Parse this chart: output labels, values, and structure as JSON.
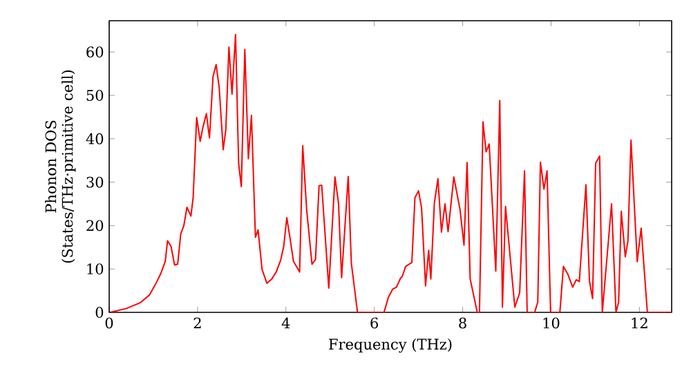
{
  "chart_data": {
    "type": "line",
    "xlabel": "Frequency (THz)",
    "ylabel": "Phonon DOS (States/THz·primitive cell)",
    "series": [
      {
        "color": "#ff0000",
        "x": [
          0.02,
          0.39,
          0.7,
          0.91,
          1.06,
          1.17,
          1.27,
          1.32,
          1.4,
          1.48,
          1.55,
          1.62,
          1.69,
          1.76,
          1.85,
          1.9,
          1.98,
          2.06,
          2.12,
          2.2,
          2.27,
          2.35,
          2.42,
          2.49,
          2.58,
          2.64,
          2.71,
          2.78,
          2.86,
          2.93,
          2.99,
          3.07,
          3.15,
          3.22,
          3.31,
          3.37,
          3.46,
          3.57,
          3.68,
          3.78,
          3.88,
          3.95,
          4.02,
          4.09,
          4.17,
          4.31,
          4.38,
          4.47,
          4.59,
          4.67,
          4.75,
          4.81,
          4.97,
          5.11,
          5.19,
          5.26,
          5.41,
          5.48,
          5.62,
          6.22,
          6.32,
          6.42,
          6.5,
          6.6,
          6.63,
          6.71,
          6.85,
          6.92,
          7.0,
          7.07,
          7.16,
          7.23,
          7.28,
          7.36,
          7.44,
          7.52,
          7.6,
          7.67,
          7.8,
          7.94,
          8.03,
          8.1,
          8.17,
          8.33,
          8.38,
          8.46,
          8.53,
          8.6,
          8.75,
          8.84,
          8.9,
          8.97,
          9.18,
          9.29,
          9.4,
          9.46,
          9.63,
          9.7,
          9.76,
          9.84,
          9.91,
          9.99,
          10.2,
          10.28,
          10.38,
          10.49,
          10.57,
          10.64,
          10.79,
          10.87,
          10.94,
          11.01,
          11.1,
          11.16,
          11.37,
          11.47,
          11.53,
          11.59,
          11.68,
          11.74,
          11.81,
          11.95,
          12.04,
          12.18,
          12.73
        ],
        "values": [
          0,
          0.9,
          2.2,
          4.0,
          6.7,
          9.0,
          11.8,
          16.5,
          15.2,
          10.9,
          11.1,
          18.1,
          20,
          24.2,
          22.2,
          26.4,
          44.9,
          39.4,
          42.6,
          45.8,
          40.2,
          54.3,
          57.1,
          51.8,
          37.5,
          42.1,
          61.1,
          50.3,
          64.0,
          34.3,
          29.0,
          60.6,
          35.4,
          45.4,
          17.3,
          19,
          9.9,
          6.7,
          7.7,
          9.3,
          12.0,
          15.2,
          21.8,
          17.3,
          11.8,
          9.3,
          38.4,
          23.6,
          11.1,
          12.2,
          29.2,
          29.3,
          5.6,
          31.2,
          25.2,
          8.0,
          31.3,
          11.4,
          0,
          0,
          3.5,
          5.4,
          5.8,
          8.0,
          8.2,
          10.6,
          11.5,
          26.4,
          28.0,
          24.1,
          6.1,
          14.3,
          7.7,
          25.2,
          30.8,
          18.5,
          25,
          18.6,
          31.2,
          23.7,
          15.5,
          34.5,
          7.7,
          0,
          0,
          43.9,
          37,
          38.8,
          9.5,
          48.8,
          1.2,
          24.4,
          1.2,
          4.5,
          32.6,
          0,
          0,
          2.4,
          34.6,
          28.4,
          32.6,
          0,
          0,
          10.6,
          8.8,
          5.8,
          7.5,
          7.1,
          29.4,
          7.2,
          3.2,
          34.4,
          36,
          0,
          25,
          0,
          2.4,
          23.3,
          12.8,
          16.4,
          39.7,
          11.7,
          19.4,
          0,
          0
        ]
      }
    ],
    "xlim": [
      0,
      12.73
    ],
    "ylim": [
      0,
      67.2
    ],
    "xticks": [
      0,
      2,
      4,
      6,
      8,
      10,
      12
    ],
    "yticks": [
      0,
      10,
      20,
      30,
      40,
      50,
      60
    ],
    "marker": "none",
    "line_style": "solid"
  }
}
